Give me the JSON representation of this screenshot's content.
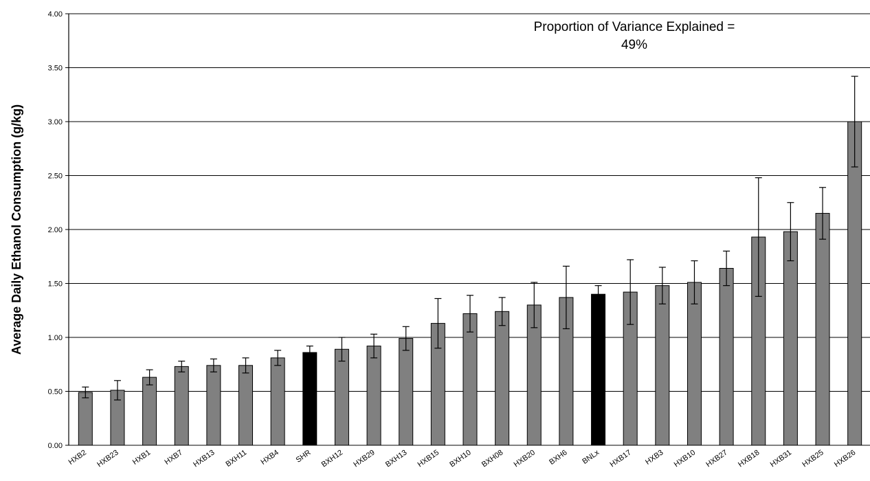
{
  "chart_data": {
    "type": "bar",
    "title": "",
    "xlabel": "",
    "ylabel": "Average Daily Ethanol Consumption (g/kg)",
    "ylim": [
      0,
      4
    ],
    "ytick_labels": [
      "0.00",
      "0.50",
      "1.00",
      "1.50",
      "2.00",
      "2.50",
      "3.00",
      "3.50",
      "4.00"
    ],
    "grid": "horizontal",
    "annotation_line1": "Proportion of Variance Explained =",
    "annotation_line2": "49%",
    "categories": [
      "HXB2",
      "HXB23",
      "HXB1",
      "HXB7",
      "HXB13",
      "BXH11",
      "HXB4",
      "SHR",
      "BXH12",
      "HXB29",
      "BXH13",
      "HXB15",
      "BXH10",
      "BXH08",
      "HXB20",
      "BXH6",
      "BNLx",
      "HXB17",
      "HXB3",
      "HXB10",
      "HXB27",
      "HXB18",
      "HXB31",
      "HXB25",
      "HXB26"
    ],
    "values": [
      0.49,
      0.51,
      0.63,
      0.73,
      0.74,
      0.74,
      0.81,
      0.86,
      0.89,
      0.92,
      0.99,
      1.13,
      1.22,
      1.24,
      1.3,
      1.37,
      1.4,
      1.42,
      1.48,
      1.51,
      1.64,
      1.93,
      1.98,
      2.15,
      3.0
    ],
    "errors": [
      0.05,
      0.09,
      0.07,
      0.05,
      0.06,
      0.07,
      0.07,
      0.06,
      0.11,
      0.11,
      0.11,
      0.23,
      0.17,
      0.13,
      0.21,
      0.29,
      0.08,
      0.3,
      0.17,
      0.2,
      0.16,
      0.55,
      0.27,
      0.24,
      0.42
    ],
    "colors": {
      "default_bar": "#808080",
      "highlight_bar": "#000000",
      "gridline": "#000000"
    },
    "highlighted": [
      "SHR",
      "BNLx"
    ]
  }
}
